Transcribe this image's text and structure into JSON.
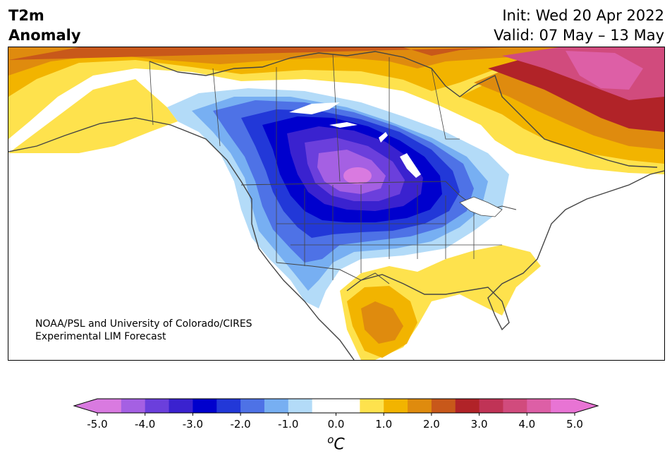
{
  "header": {
    "variable_line1": "T2m",
    "variable_line2": "Anomaly",
    "init": "Init: Wed 20 Apr 2022",
    "valid": "Valid: 07 May – 13 May"
  },
  "credit": {
    "line1": "NOAA/PSL and University of Colorado/CIRES",
    "line2": "Experimental LIM Forecast"
  },
  "colorbar": {
    "unit_base": "C",
    "unit_sup": "o",
    "ticks": [
      "-5.0",
      "-4.0",
      "-3.0",
      "-2.0",
      "-1.0",
      "0.0",
      "1.0",
      "2.0",
      "3.0",
      "4.0",
      "5.0"
    ],
    "colors": [
      "#d97ae0",
      "#a560e3",
      "#6b3fdc",
      "#3a22cf",
      "#0000cd",
      "#2238d8",
      "#4e72e6",
      "#77aff2",
      "#b3dbf8",
      "#ffffff",
      "#ffffff",
      "#fee24d",
      "#f2b400",
      "#df8b0e",
      "#c8581a",
      "#b12328",
      "#c03356",
      "#d14b7d",
      "#dd5fa6",
      "#e874d4"
    ],
    "under_color": "#d97ae0",
    "over_color": "#e874d4"
  }
}
